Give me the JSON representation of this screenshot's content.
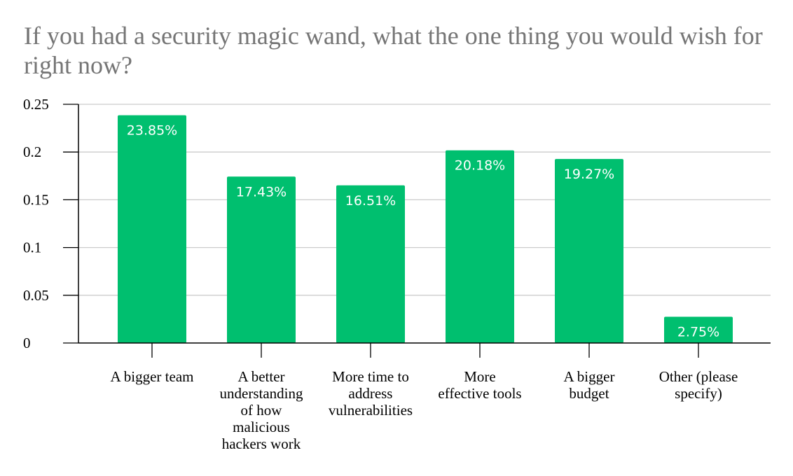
{
  "chart_data": {
    "type": "bar",
    "title": "If you had a security magic wand, what the one thing you would wish for right now?",
    "xlabel": "",
    "ylabel": "",
    "categories": [
      "A bigger team",
      "A better understanding of how malicious hackers work",
      "More time to address vulnerabilities",
      "More effective tools",
      "A bigger budget",
      "Other (please specify)"
    ],
    "category_lines": [
      [
        "A bigger team"
      ],
      [
        "A better",
        "understanding",
        "of how",
        "malicious",
        "hackers work"
      ],
      [
        "More time to",
        "address",
        "vulnerabilities"
      ],
      [
        "More",
        "effective tools"
      ],
      [
        "A bigger",
        "budget"
      ],
      [
        "Other (please",
        "specify)"
      ]
    ],
    "values": [
      0.2385,
      0.1743,
      0.1651,
      0.2018,
      0.1927,
      0.0275
    ],
    "data_labels": [
      "23.85%",
      "17.43%",
      "16.51%",
      "20.18%",
      "19.27%",
      "2.75%"
    ],
    "ylim": [
      0,
      0.25
    ],
    "yticks": [
      0,
      0.05,
      0.1,
      0.15,
      0.2,
      0.25
    ],
    "ytick_labels": [
      "0",
      "0.05",
      "0.1",
      "0.15",
      "0.2",
      "0.25"
    ],
    "grid": true,
    "legend": "none",
    "bar_color": "#00bf6f",
    "grid_color": "#cccccc"
  }
}
